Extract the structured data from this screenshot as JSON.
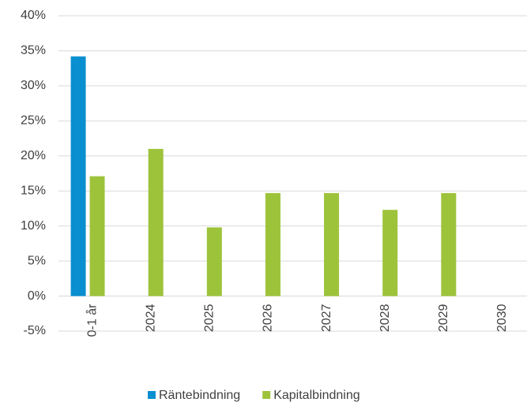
{
  "chart_data": {
    "type": "bar",
    "categories": [
      "0-1 år",
      "2024",
      "2025",
      "2026",
      "2027",
      "2028",
      "2029",
      "2030"
    ],
    "series": [
      {
        "name": "Räntebindning",
        "color": "#0a8fd0",
        "values": [
          34.2,
          0,
          0,
          0,
          0,
          0,
          0,
          0
        ]
      },
      {
        "name": "Kapitalbindning",
        "color": "#9dc33b",
        "values": [
          17.1,
          21.0,
          9.8,
          14.7,
          14.7,
          12.3,
          14.7,
          0
        ]
      }
    ],
    "ylim": [
      -5,
      40
    ],
    "yticks": [
      {
        "value": -5,
        "label": "-5%"
      },
      {
        "value": 0,
        "label": "0%"
      },
      {
        "value": 5,
        "label": "5%"
      },
      {
        "value": 10,
        "label": "10%"
      },
      {
        "value": 15,
        "label": "15%"
      },
      {
        "value": 20,
        "label": "20%"
      },
      {
        "value": 25,
        "label": "25%"
      },
      {
        "value": 30,
        "label": "30%"
      },
      {
        "value": 35,
        "label": "35%"
      },
      {
        "value": 40,
        "label": "40%"
      }
    ],
    "grid": true,
    "legend": "bottom"
  }
}
